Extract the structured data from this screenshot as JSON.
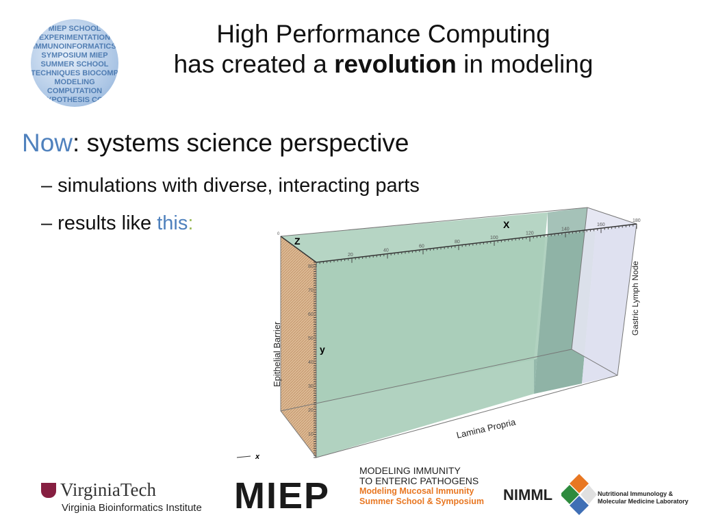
{
  "title": {
    "line1": "High Performance Computing",
    "line2_pre": "has created a ",
    "line2_bold": "revolution",
    "line2_post": " in modeling"
  },
  "logo_sphere": {
    "words": [
      "MIEP SCHOOL",
      "EXPERIMENTATION",
      "IMMUNOINFORMATICS",
      "SYMPOSIUM MIEP",
      "SUMMER SCHOOL",
      "TECHNIQUES BIOCOMP",
      "MODELING",
      "COMPUTATION",
      "HYPOTHESIS COS"
    ]
  },
  "bullets": {
    "main_accent": "Now",
    "main_rest": ": systems science perspective",
    "sub1": "– simulations with diverse, interacting parts",
    "sub2_pre": "– results like ",
    "sub2_link": "this",
    "sub2_colon": ":"
  },
  "figure": {
    "axis_x": "X",
    "axis_z": "Z",
    "axis_y": "y",
    "legend_x": "x",
    "x_ticks": [
      "20",
      "40",
      "60",
      "80",
      "100",
      "120",
      "140",
      "160",
      "180"
    ],
    "y_ticks": [
      "10",
      "20",
      "30",
      "40",
      "50",
      "60",
      "70",
      "80"
    ],
    "z_start": "0",
    "label_epithelial": "Epithelial Barrier",
    "label_lamina": "Lamina Propria",
    "label_lymph": "Gastric Lymph Node",
    "colors": {
      "epithelial": "#d9b88f",
      "lamina": "#a9cdb9",
      "lymph": "#e3e4f2",
      "band": "#8fb3a6"
    }
  },
  "footer": {
    "vt_name": "VirginiaTech",
    "vt_sub": "Virginia Bioinformatics Institute",
    "miep": "MIEP",
    "miep_line1": "MODELING IMMUNITY",
    "miep_line2": "TO ENTERIC PATHOGENS",
    "miep_line3": "Modeling Mucosal Immunity",
    "miep_line4": "Summer School & Symposium",
    "nimml": "NIMML",
    "nimml_line1": "Nutritional Immunology &",
    "nimml_line2": "Molecular Medicine Laboratory"
  }
}
